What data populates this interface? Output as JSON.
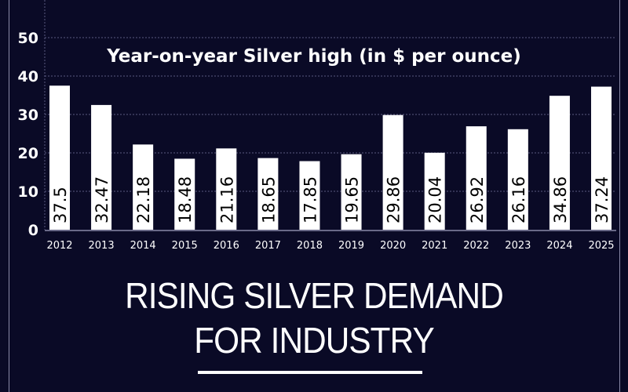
{
  "chart_data": {
    "type": "bar",
    "title": "Year-on-year Silver high (in $ per ounce)",
    "xlabel": "",
    "ylabel": "",
    "categories": [
      "2012",
      "2013",
      "2014",
      "2015",
      "2016",
      "2017",
      "2018",
      "2019",
      "2020",
      "2021",
      "2022",
      "2023",
      "2024",
      "2025"
    ],
    "values": [
      37.5,
      32.47,
      22.18,
      18.48,
      21.16,
      18.65,
      17.85,
      19.65,
      29.86,
      20.04,
      26.92,
      26.16,
      34.86,
      37.24
    ],
    "data_labels": [
      "37.5",
      "32.47",
      "22.18",
      "18.48",
      "21.16",
      "18.65",
      "17.85",
      "19.65",
      "29.86",
      "20.04",
      "26.92",
      "26.16",
      "34.86",
      "37.24"
    ],
    "ylim": [
      0,
      50
    ],
    "yticks": [
      "0",
      "10",
      "20",
      "30",
      "40",
      "50"
    ],
    "grid": true,
    "bar_color": "#ffffff",
    "background": "#0a0a26"
  },
  "heading": {
    "line1": "RISING SILVER DEMAND",
    "line2": "FOR INDUSTRY"
  }
}
